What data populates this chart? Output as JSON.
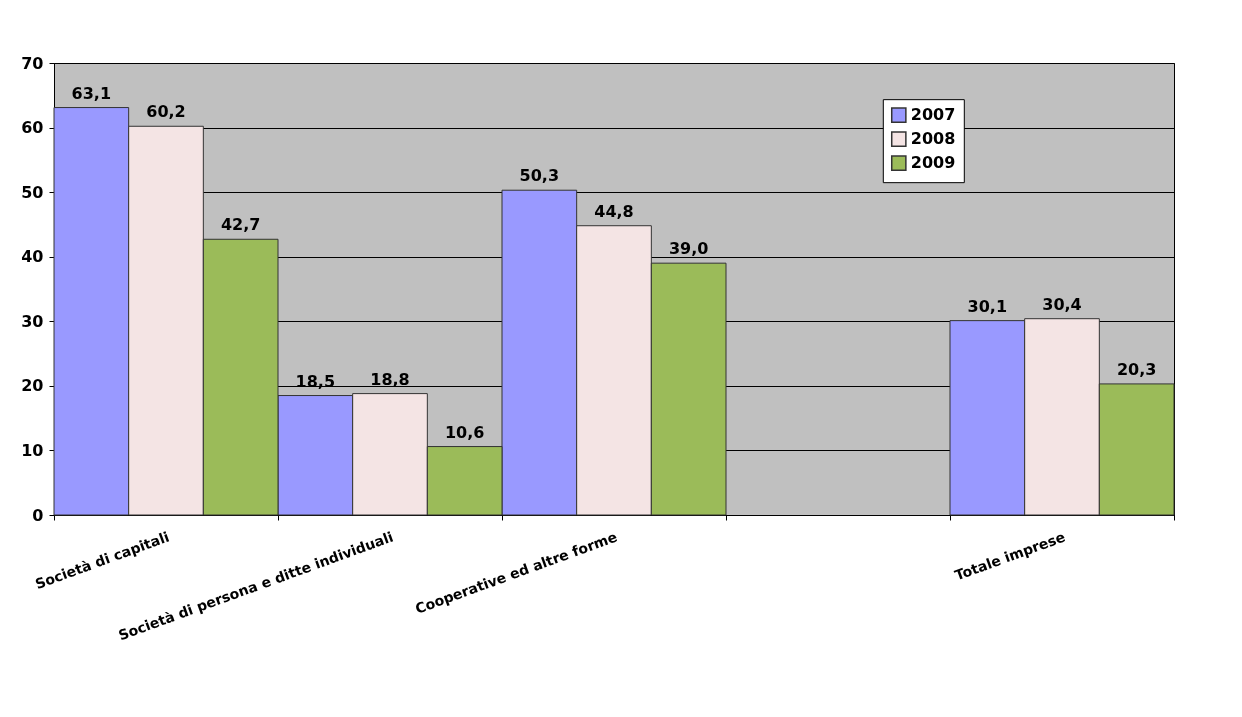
{
  "chart_data": {
    "type": "bar",
    "categories": [
      "Società di capitali",
      "Società di persona e ditte individuali",
      "Cooperative ed altre forme",
      null,
      "Totale imprese"
    ],
    "series": [
      {
        "name": "2007",
        "color": "#9999ff",
        "values": [
          63.1,
          18.5,
          50.3,
          null,
          30.1
        ],
        "value_labels": [
          "63,1",
          "18,5",
          "50,3",
          null,
          "30,1"
        ]
      },
      {
        "name": "2008",
        "color": "#f4e4e4",
        "values": [
          60.2,
          18.8,
          44.8,
          null,
          30.4
        ],
        "value_labels": [
          "60,2",
          "18,8",
          "44,8",
          null,
          "30,4"
        ]
      },
      {
        "name": "2009",
        "color": "#9bbb59",
        "values": [
          42.7,
          10.6,
          39.0,
          null,
          20.3
        ],
        "value_labels": [
          "42,7",
          "10,6",
          "39,0",
          null,
          "20,3"
        ]
      }
    ],
    "ylim": [
      0,
      70
    ],
    "yticks": [
      0,
      10,
      20,
      30,
      40,
      50,
      60,
      70
    ],
    "grid": "y",
    "legend": "top right"
  }
}
